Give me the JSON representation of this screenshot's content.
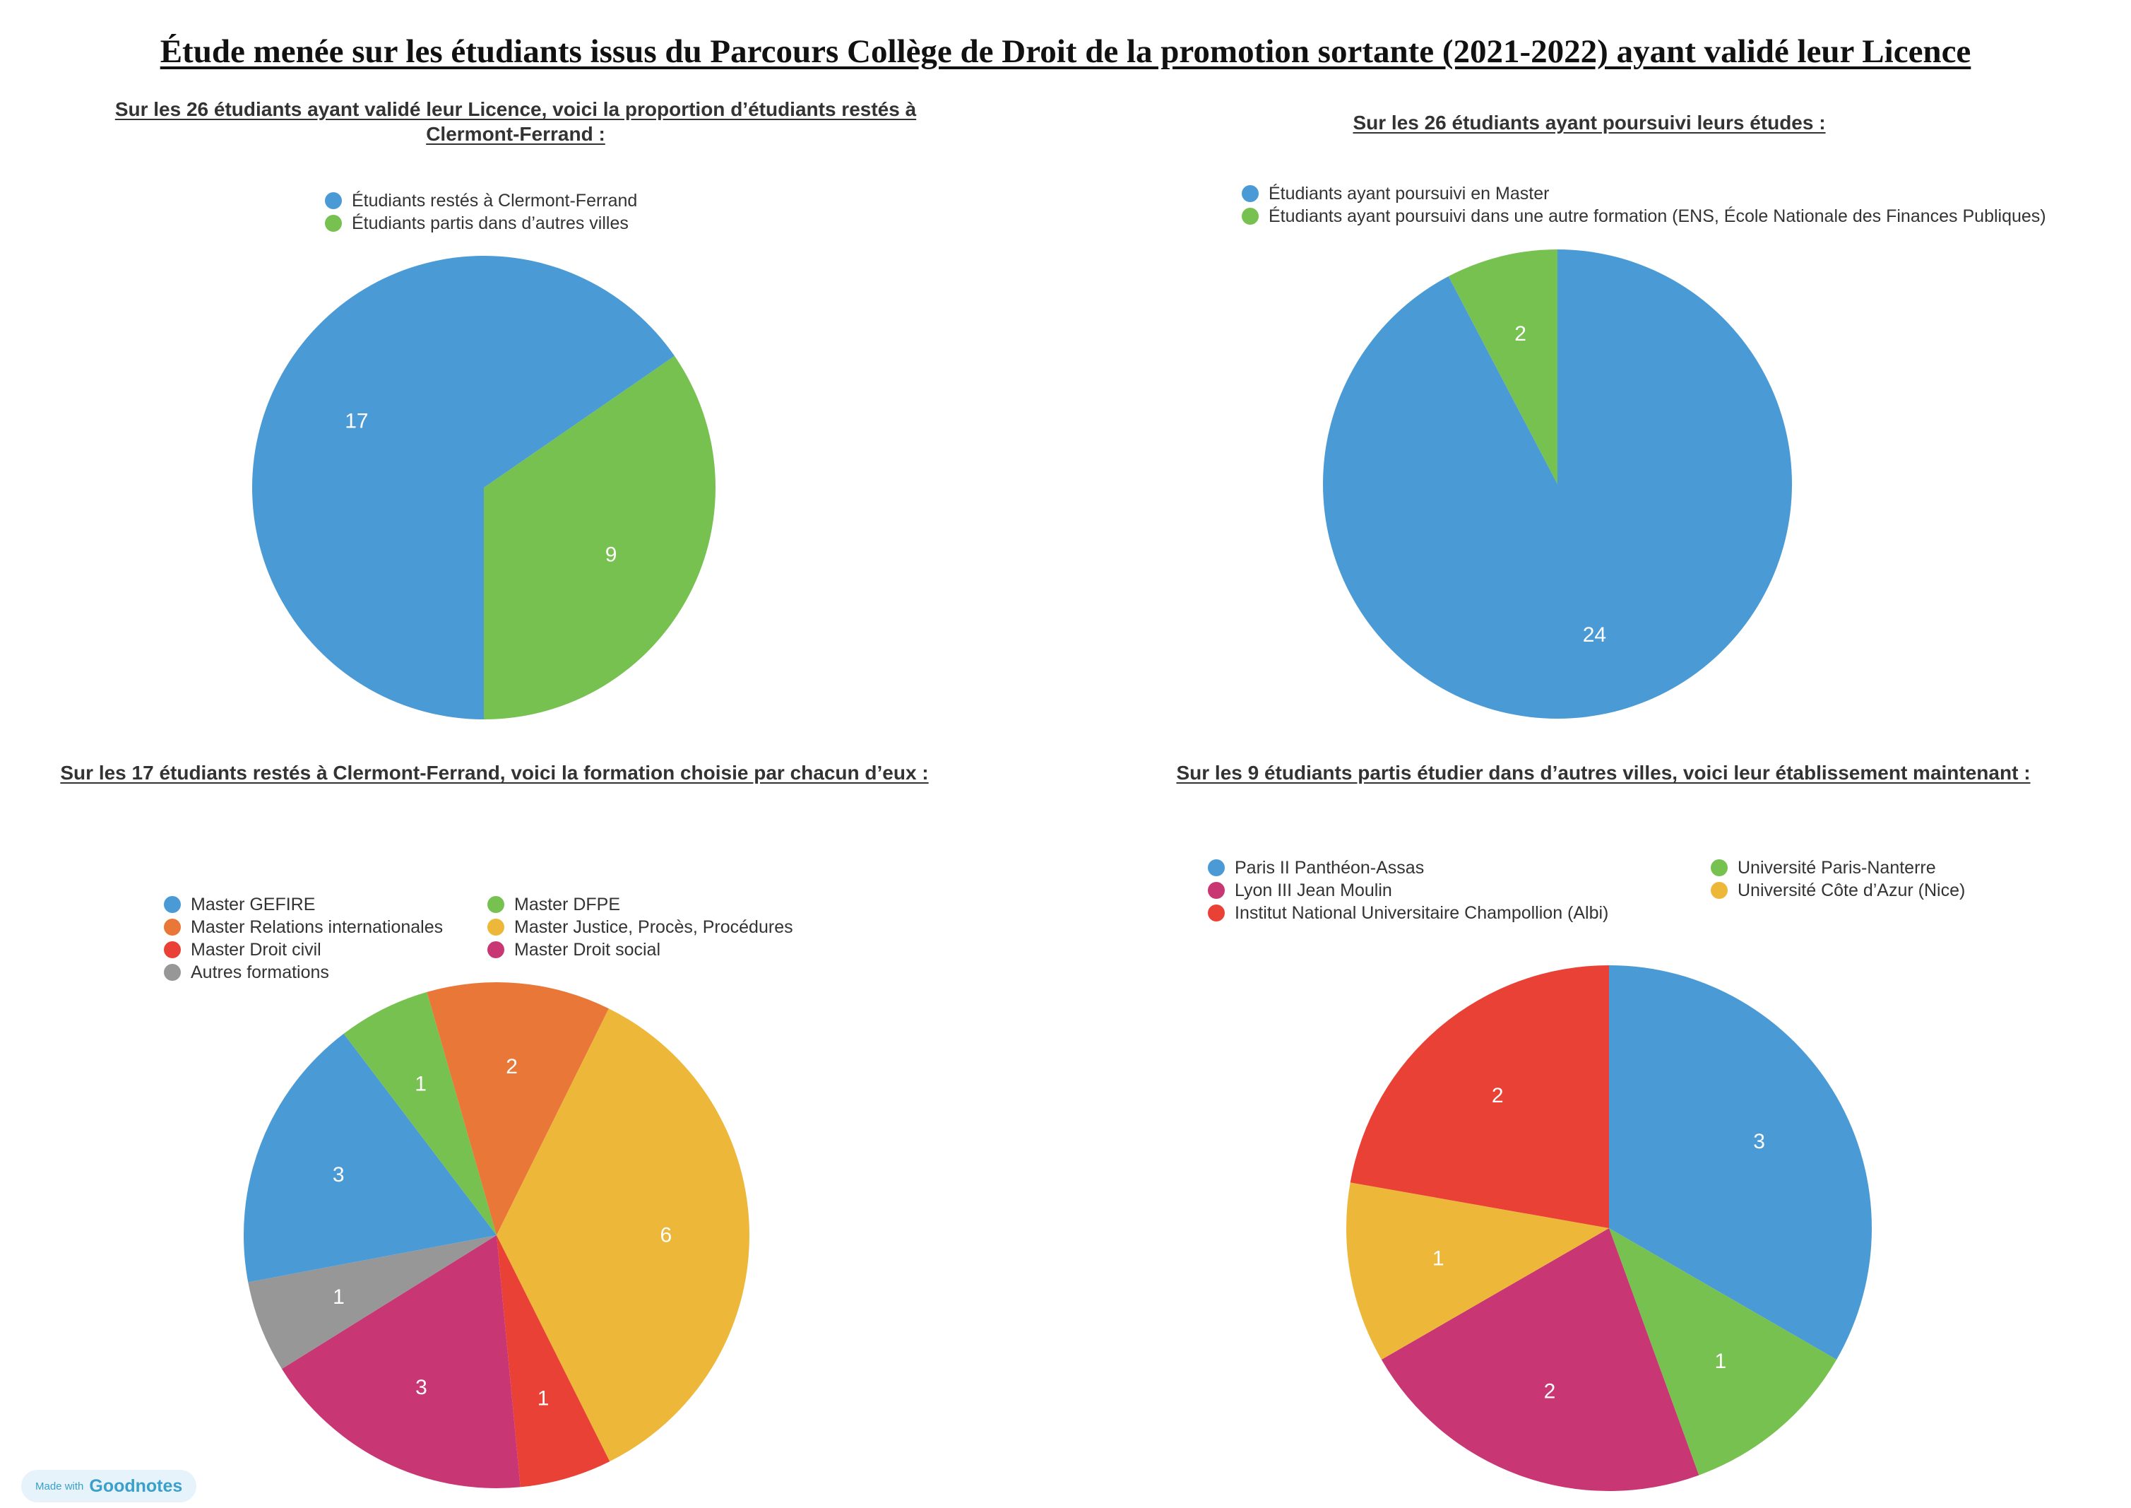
{
  "title": "Étude menée sur les étudiants issus du Parcours Collège de Droit de la promotion sortante (2021-2022) ayant validé leur Licence",
  "chart_data": [
    {
      "type": "pie",
      "title": "Sur les 26 étudiants ayant validé leur Licence, voici la proportion d’étudiants restés à Clermont-Ferrand :",
      "legend": "top",
      "start_angle": 90,
      "direction": "ccw",
      "slices": [
        {
          "label": "Étudiants restés à Clermont-Ferrand",
          "value": 17,
          "color": "#4a9ad6"
        },
        {
          "label": "Étudiants partis dans d’autres villes",
          "value": 9,
          "color": "#77c150"
        }
      ],
      "order": [
        1,
        0
      ]
    },
    {
      "type": "pie",
      "title": "Sur les 26 étudiants ayant poursuivi leurs études :",
      "legend": "top",
      "slices": [
        {
          "label": "Étudiants ayant poursuivi en Master",
          "value": 24,
          "color": "#4a9ad6"
        },
        {
          "label": "Étudiants ayant poursuivi dans une autre formation (ENS, École Nationale des Finances Publiques)",
          "value": 2,
          "color": "#77c150"
        }
      ],
      "order": [
        0,
        1
      ]
    },
    {
      "type": "pie",
      "title": "Sur les 17 étudiants restés à Clermont-Ferrand, voici la formation choisie par chacun d’eux :",
      "legend": "top",
      "slices": [
        {
          "label": "Master GEFIRE",
          "value": 3,
          "color": "#4a9ad6"
        },
        {
          "label": "Master DFPE",
          "value": 1,
          "color": "#77c150"
        },
        {
          "label": "Master Relations internationales",
          "value": 2,
          "color": "#e97838"
        },
        {
          "label": "Master Justice, Procès, Procédures",
          "value": 6,
          "color": "#edb83a"
        },
        {
          "label": "Master Droit civil",
          "value": 1,
          "color": "#ea4137"
        },
        {
          "label": "Master Droit social",
          "value": 3,
          "color": "#c93674"
        },
        {
          "label": "Autres formations",
          "value": 1,
          "color": "#979797"
        }
      ],
      "order": [
        2,
        3,
        4,
        5,
        6,
        0,
        1
      ]
    },
    {
      "type": "pie",
      "title": "Sur les 9 étudiants partis étudier dans d’autres villes, voici leur établissement maintenant :",
      "legend": "top",
      "slices": [
        {
          "label": "Paris II Panthéon-Assas",
          "value": 3,
          "color": "#4a9ad6"
        },
        {
          "label": "Université Paris-Nanterre",
          "value": 1,
          "color": "#77c150"
        },
        {
          "label": "Lyon III Jean Moulin",
          "value": 2,
          "color": "#c93674"
        },
        {
          "label": "Université Côte d’Azur (Nice)",
          "value": 1,
          "color": "#edb83a"
        },
        {
          "label": "Institut National Universitaire Champollion (Albi)",
          "value": 2,
          "color": "#ea4137"
        }
      ],
      "order": [
        0,
        1,
        2,
        3,
        4
      ]
    }
  ],
  "badge": {
    "small": "Made with",
    "brand": "Goodnotes"
  }
}
